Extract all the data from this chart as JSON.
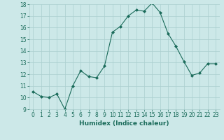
{
  "x": [
    0,
    1,
    2,
    3,
    4,
    5,
    6,
    7,
    8,
    9,
    10,
    11,
    12,
    13,
    14,
    15,
    16,
    17,
    18,
    19,
    20,
    21,
    22,
    23
  ],
  "y": [
    10.5,
    10.1,
    10.0,
    10.3,
    9.0,
    11.0,
    12.3,
    11.8,
    11.7,
    12.7,
    15.6,
    16.1,
    17.0,
    17.5,
    17.4,
    18.1,
    17.3,
    15.5,
    14.4,
    13.1,
    11.9,
    12.1,
    12.9,
    12.9
  ],
  "ylim": [
    9,
    18
  ],
  "xlim_min": -0.5,
  "xlim_max": 23.5,
  "yticks": [
    9,
    10,
    11,
    12,
    13,
    14,
    15,
    16,
    17,
    18
  ],
  "xticks": [
    0,
    1,
    2,
    3,
    4,
    5,
    6,
    7,
    8,
    9,
    10,
    11,
    12,
    13,
    14,
    15,
    16,
    17,
    18,
    19,
    20,
    21,
    22,
    23
  ],
  "xlabel": "Humidex (Indice chaleur)",
  "line_color": "#1a6b5a",
  "marker_color": "#1a6b5a",
  "bg_color": "#cce8e8",
  "grid_color": "#aacfcf",
  "tick_color": "#1a6b5a",
  "label_color": "#1a6b5a",
  "fontsize_label": 6.5,
  "fontsize_tick": 5.5
}
